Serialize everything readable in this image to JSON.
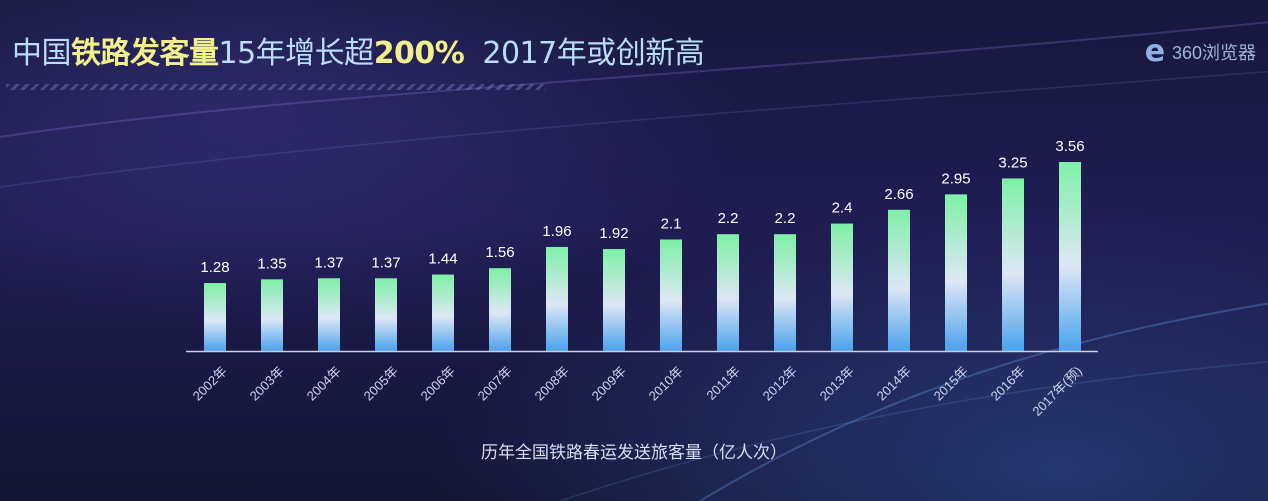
{
  "header": {
    "title_prefix": "中国",
    "title_highlight": "铁路发客量",
    "title_mid": "15年增长超",
    "title_highlight2": "200%",
    "title_suffix": "2017年或创新高"
  },
  "logo": {
    "text": "360浏览器",
    "icon": "e-browser-logo-icon"
  },
  "colors": {
    "background": "#1b1b4a",
    "title": "#b9dcf7",
    "highlight": "#f1f08a",
    "bar_top": "#7ef0a6",
    "bar_mid": "#dde7f5",
    "bar_bottom": "#4aa2ec",
    "axis": "#c9cfe0"
  },
  "chart_data": {
    "type": "bar",
    "categories": [
      "2002年",
      "2003年",
      "2004年",
      "2005年",
      "2006年",
      "2007年",
      "2008年",
      "2009年",
      "2010年",
      "2011年",
      "2012年",
      "2013年",
      "2014年",
      "2015年",
      "2016年",
      "2017年(预)"
    ],
    "value_labels": [
      "1.28",
      "1.35",
      "1.37",
      "1.37",
      "1.44",
      "1.56",
      "1.96",
      "1.92",
      "2.1",
      "2.2",
      "2.2",
      "2.4",
      "2.66",
      "2.95",
      "3.25",
      "3.56"
    ],
    "values": [
      1.28,
      1.35,
      1.37,
      1.37,
      1.44,
      1.56,
      1.96,
      1.92,
      2.1,
      2.2,
      2.2,
      2.4,
      2.66,
      2.95,
      3.25,
      3.56
    ],
    "xlabel": "历年全国铁路春运发送旅客量（亿人次）",
    "ylabel": "",
    "ylim": [
      0,
      3.56
    ],
    "grid": false,
    "legend": "none"
  }
}
